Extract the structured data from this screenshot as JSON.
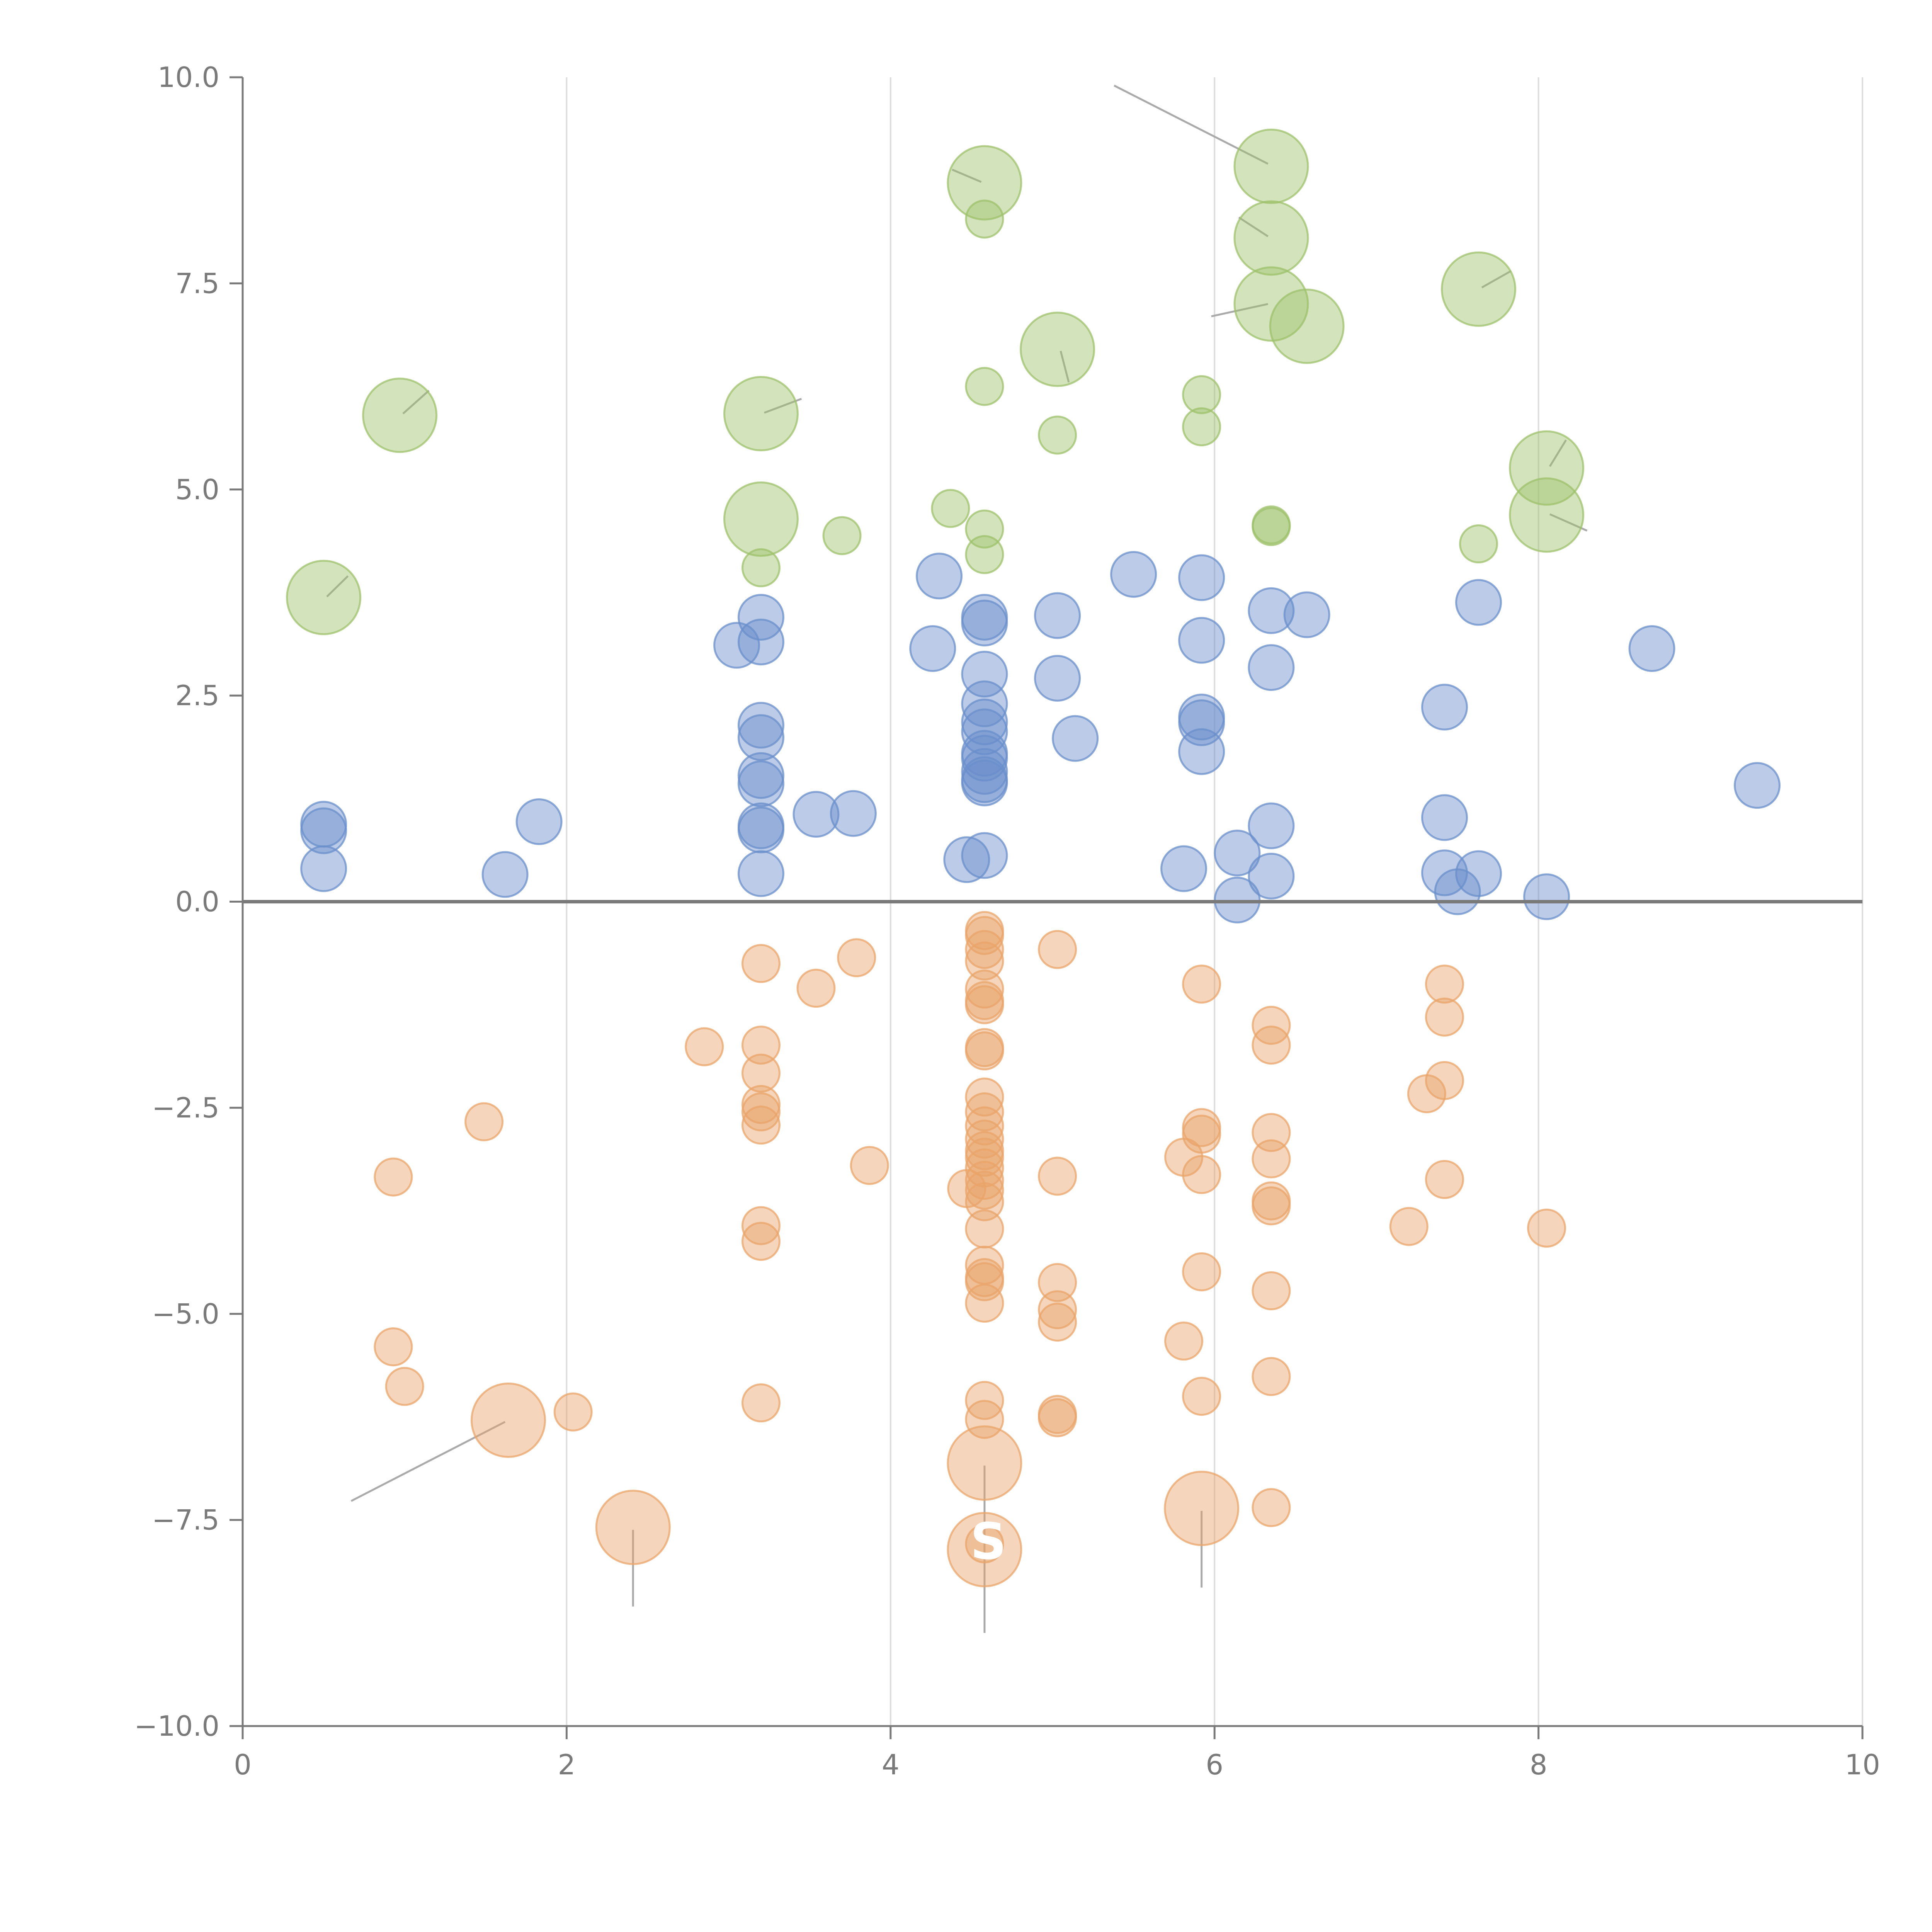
{
  "chart_data": {
    "type": "scatter",
    "title": "",
    "xlabel": "",
    "ylabel": "",
    "xlim": [
      0,
      10
    ],
    "ylim": [
      -10,
      10
    ],
    "x_ticks": [
      0,
      2,
      4,
      6,
      8,
      10
    ],
    "x_tick_labels": [
      "0",
      "2",
      "4",
      "6",
      "8",
      "10"
    ],
    "y_ticks": [
      -10,
      -7.5,
      -5,
      -2.5,
      0,
      2.5,
      5,
      7.5,
      10
    ],
    "y_tick_labels": [
      "−10.0",
      "−7.5",
      "−5.0",
      "−2.5",
      "0.0",
      "2.5",
      "5.0",
      "7.5",
      "10.0"
    ],
    "grid": "vertical lines at x ticks",
    "baseline_y": 0,
    "colors": {
      "top": "#9dc16b",
      "middle": "#6a8fcb",
      "bottom": "#e9a46a",
      "axis": "#7a7a7a",
      "grid": "#dddddd",
      "leader": "#aaaaaa"
    },
    "series": [
      {
        "name": "top",
        "points": [
          {
            "x": 4.58,
            "y": 8.72,
            "s": "big"
          },
          {
            "x": 4.58,
            "y": 8.28,
            "s": "small"
          },
          {
            "x": 6.35,
            "y": 8.92,
            "s": "big"
          },
          {
            "x": 6.35,
            "y": 8.05,
            "s": "big"
          },
          {
            "x": 6.35,
            "y": 7.25,
            "s": "big"
          },
          {
            "x": 6.57,
            "y": 6.98,
            "s": "big"
          },
          {
            "x": 7.63,
            "y": 7.43,
            "s": "big"
          },
          {
            "x": 5.03,
            "y": 6.7,
            "s": "big"
          },
          {
            "x": 0.97,
            "y": 5.9,
            "s": "big"
          },
          {
            "x": 3.2,
            "y": 5.92,
            "s": "big"
          },
          {
            "x": 4.58,
            "y": 6.25,
            "s": "small"
          },
          {
            "x": 5.92,
            "y": 6.15,
            "s": "small"
          },
          {
            "x": 5.92,
            "y": 5.76,
            "s": "small"
          },
          {
            "x": 5.03,
            "y": 5.66,
            "s": "small"
          },
          {
            "x": 8.05,
            "y": 5.26,
            "s": "big"
          },
          {
            "x": 8.05,
            "y": 4.69,
            "s": "big"
          },
          {
            "x": 3.2,
            "y": 4.64,
            "s": "big"
          },
          {
            "x": 4.37,
            "y": 4.77,
            "s": "small"
          },
          {
            "x": 4.58,
            "y": 4.52,
            "s": "small"
          },
          {
            "x": 6.35,
            "y": 4.57,
            "s": "small"
          },
          {
            "x": 6.35,
            "y": 4.55,
            "s": "small"
          },
          {
            "x": 3.7,
            "y": 4.44,
            "s": "small"
          },
          {
            "x": 7.63,
            "y": 4.34,
            "s": "small"
          },
          {
            "x": 4.58,
            "y": 4.21,
            "s": "small"
          },
          {
            "x": 3.2,
            "y": 4.05,
            "s": "small"
          },
          {
            "x": 0.5,
            "y": 3.69,
            "s": "big"
          }
        ]
      },
      {
        "name": "middle",
        "points": [
          {
            "x": 4.3,
            "y": 3.95
          },
          {
            "x": 5.5,
            "y": 3.97
          },
          {
            "x": 5.92,
            "y": 3.93
          },
          {
            "x": 7.63,
            "y": 3.63
          },
          {
            "x": 6.35,
            "y": 3.53
          },
          {
            "x": 6.57,
            "y": 3.48
          },
          {
            "x": 3.2,
            "y": 3.45
          },
          {
            "x": 4.58,
            "y": 3.45
          },
          {
            "x": 4.58,
            "y": 3.38
          },
          {
            "x": 5.03,
            "y": 3.47
          },
          {
            "x": 5.92,
            "y": 3.17
          },
          {
            "x": 3.2,
            "y": 3.15
          },
          {
            "x": 3.05,
            "y": 3.11
          },
          {
            "x": 4.26,
            "y": 3.07
          },
          {
            "x": 8.7,
            "y": 3.07
          },
          {
            "x": 6.35,
            "y": 2.84
          },
          {
            "x": 4.58,
            "y": 2.76
          },
          {
            "x": 5.03,
            "y": 2.71
          },
          {
            "x": 4.58,
            "y": 2.4
          },
          {
            "x": 7.42,
            "y": 2.36
          },
          {
            "x": 5.92,
            "y": 2.24
          },
          {
            "x": 5.92,
            "y": 2.17
          },
          {
            "x": 4.58,
            "y": 2.18
          },
          {
            "x": 3.2,
            "y": 2.14
          },
          {
            "x": 4.58,
            "y": 2.06
          },
          {
            "x": 3.2,
            "y": 1.99
          },
          {
            "x": 5.14,
            "y": 1.98
          },
          {
            "x": 5.92,
            "y": 1.82
          },
          {
            "x": 4.58,
            "y": 1.8
          },
          {
            "x": 4.58,
            "y": 1.74
          },
          {
            "x": 4.58,
            "y": 1.58
          },
          {
            "x": 3.2,
            "y": 1.53
          },
          {
            "x": 4.58,
            "y": 1.48
          },
          {
            "x": 4.58,
            "y": 1.44
          },
          {
            "x": 3.2,
            "y": 1.43
          },
          {
            "x": 9.35,
            "y": 1.41
          },
          {
            "x": 3.54,
            "y": 1.06
          },
          {
            "x": 3.77,
            "y": 1.07
          },
          {
            "x": 7.42,
            "y": 1.02
          },
          {
            "x": 0.5,
            "y": 0.94
          },
          {
            "x": 0.5,
            "y": 0.86
          },
          {
            "x": 1.83,
            "y": 0.97
          },
          {
            "x": 3.2,
            "y": 0.92
          },
          {
            "x": 3.2,
            "y": 0.87
          },
          {
            "x": 6.35,
            "y": 0.92
          },
          {
            "x": 6.14,
            "y": 0.59
          },
          {
            "x": 4.58,
            "y": 0.56
          },
          {
            "x": 4.47,
            "y": 0.51
          },
          {
            "x": 5.81,
            "y": 0.4
          },
          {
            "x": 0.5,
            "y": 0.4
          },
          {
            "x": 7.42,
            "y": 0.35
          },
          {
            "x": 7.63,
            "y": 0.34
          },
          {
            "x": 1.62,
            "y": 0.33
          },
          {
            "x": 3.2,
            "y": 0.34
          },
          {
            "x": 6.35,
            "y": 0.31
          },
          {
            "x": 7.5,
            "y": 0.12
          },
          {
            "x": 8.05,
            "y": 0.06
          },
          {
            "x": 6.14,
            "y": 0.02
          }
        ]
      },
      {
        "name": "bottom",
        "points": [
          {
            "x": 4.58,
            "y": -0.35,
            "s": "small"
          },
          {
            "x": 4.58,
            "y": -0.41,
            "s": "small"
          },
          {
            "x": 4.58,
            "y": -0.58,
            "s": "small"
          },
          {
            "x": 5.03,
            "y": -0.58,
            "s": "small"
          },
          {
            "x": 3.79,
            "y": -0.68,
            "s": "small"
          },
          {
            "x": 4.58,
            "y": -0.72,
            "s": "small"
          },
          {
            "x": 3.2,
            "y": -0.75,
            "s": "small"
          },
          {
            "x": 5.92,
            "y": -1.0,
            "s": "small"
          },
          {
            "x": 7.42,
            "y": -1.0,
            "s": "small"
          },
          {
            "x": 4.58,
            "y": -1.06,
            "s": "small"
          },
          {
            "x": 3.54,
            "y": -1.05,
            "s": "small"
          },
          {
            "x": 4.58,
            "y": -1.2,
            "s": "small"
          },
          {
            "x": 4.58,
            "y": -1.25,
            "s": "small"
          },
          {
            "x": 7.42,
            "y": -1.4,
            "s": "small"
          },
          {
            "x": 6.35,
            "y": -1.5,
            "s": "small"
          },
          {
            "x": 6.35,
            "y": -1.74,
            "s": "small"
          },
          {
            "x": 2.85,
            "y": -1.76,
            "s": "small"
          },
          {
            "x": 3.2,
            "y": -1.74,
            "s": "small"
          },
          {
            "x": 4.58,
            "y": -1.77,
            "s": "small"
          },
          {
            "x": 4.58,
            "y": -1.81,
            "s": "small"
          },
          {
            "x": 3.2,
            "y": -2.08,
            "s": "small"
          },
          {
            "x": 7.42,
            "y": -2.17,
            "s": "small"
          },
          {
            "x": 7.31,
            "y": -2.33,
            "s": "small"
          },
          {
            "x": 4.58,
            "y": -2.37,
            "s": "small"
          },
          {
            "x": 3.2,
            "y": -2.46,
            "s": "small"
          },
          {
            "x": 3.2,
            "y": -2.55,
            "s": "small"
          },
          {
            "x": 4.58,
            "y": -2.55,
            "s": "small"
          },
          {
            "x": 1.49,
            "y": -2.67,
            "s": "small"
          },
          {
            "x": 3.2,
            "y": -2.71,
            "s": "small"
          },
          {
            "x": 4.58,
            "y": -2.72,
            "s": "small"
          },
          {
            "x": 5.92,
            "y": -2.74,
            "s": "small"
          },
          {
            "x": 5.92,
            "y": -2.82,
            "s": "small"
          },
          {
            "x": 6.35,
            "y": -2.8,
            "s": "small"
          },
          {
            "x": 4.58,
            "y": -2.88,
            "s": "small"
          },
          {
            "x": 4.58,
            "y": -3.02,
            "s": "small"
          },
          {
            "x": 4.58,
            "y": -3.1,
            "s": "small"
          },
          {
            "x": 5.81,
            "y": -3.1,
            "s": "small"
          },
          {
            "x": 6.35,
            "y": -3.12,
            "s": "small"
          },
          {
            "x": 3.87,
            "y": -3.2,
            "s": "small"
          },
          {
            "x": 4.58,
            "y": -3.23,
            "s": "small"
          },
          {
            "x": 0.93,
            "y": -3.34,
            "s": "small"
          },
          {
            "x": 5.03,
            "y": -3.33,
            "s": "small"
          },
          {
            "x": 5.92,
            "y": -3.31,
            "s": "small"
          },
          {
            "x": 7.42,
            "y": -3.37,
            "s": "small"
          },
          {
            "x": 4.58,
            "y": -3.38,
            "s": "small"
          },
          {
            "x": 4.47,
            "y": -3.48,
            "s": "small"
          },
          {
            "x": 4.58,
            "y": -3.5,
            "s": "small"
          },
          {
            "x": 6.35,
            "y": -3.63,
            "s": "small"
          },
          {
            "x": 4.58,
            "y": -3.64,
            "s": "small"
          },
          {
            "x": 6.35,
            "y": -3.69,
            "s": "small"
          },
          {
            "x": 3.2,
            "y": -3.93,
            "s": "small"
          },
          {
            "x": 7.2,
            "y": -3.94,
            "s": "small"
          },
          {
            "x": 4.58,
            "y": -3.97,
            "s": "small"
          },
          {
            "x": 8.05,
            "y": -3.96,
            "s": "small"
          },
          {
            "x": 3.2,
            "y": -4.12,
            "s": "small"
          },
          {
            "x": 4.58,
            "y": -4.41,
            "s": "small"
          },
          {
            "x": 5.92,
            "y": -4.49,
            "s": "small"
          },
          {
            "x": 4.58,
            "y": -4.56,
            "s": "small"
          },
          {
            "x": 5.03,
            "y": -4.62,
            "s": "small"
          },
          {
            "x": 4.58,
            "y": -4.61,
            "s": "small"
          },
          {
            "x": 6.35,
            "y": -4.72,
            "s": "small"
          },
          {
            "x": 4.58,
            "y": -4.87,
            "s": "small"
          },
          {
            "x": 5.03,
            "y": -4.95,
            "s": "small"
          },
          {
            "x": 5.03,
            "y": -5.1,
            "s": "small"
          },
          {
            "x": 5.81,
            "y": -5.33,
            "s": "small"
          },
          {
            "x": 0.93,
            "y": -5.4,
            "s": "small"
          },
          {
            "x": 6.35,
            "y": -5.76,
            "s": "small"
          },
          {
            "x": 1.0,
            "y": -5.88,
            "s": "small"
          },
          {
            "x": 5.92,
            "y": -6.0,
            "s": "small"
          },
          {
            "x": 4.58,
            "y": -6.05,
            "s": "small"
          },
          {
            "x": 3.2,
            "y": -6.08,
            "s": "small"
          },
          {
            "x": 2.04,
            "y": -6.19,
            "s": "small"
          },
          {
            "x": 5.03,
            "y": -6.22,
            "s": "small"
          },
          {
            "x": 5.03,
            "y": -6.26,
            "s": "small"
          },
          {
            "x": 4.58,
            "y": -6.28,
            "s": "small"
          },
          {
            "x": 1.64,
            "y": -6.29,
            "s": "big"
          },
          {
            "x": 4.58,
            "y": -6.81,
            "s": "big"
          },
          {
            "x": 6.35,
            "y": -7.35,
            "s": "small"
          },
          {
            "x": 5.92,
            "y": -7.36,
            "s": "big"
          },
          {
            "x": 2.41,
            "y": -7.59,
            "s": "big"
          },
          {
            "x": 4.58,
            "y": -7.79,
            "s": "small"
          },
          {
            "x": 4.58,
            "y": -7.86,
            "s": "big"
          }
        ]
      }
    ],
    "leader_lines": [
      {
        "x1": 5.38,
        "y1": 9.9,
        "x2": 6.33,
        "y2": 8.95
      },
      {
        "x1": 4.38,
        "y1": 8.88,
        "x2": 4.56,
        "y2": 8.73
      },
      {
        "x1": 6.15,
        "y1": 8.3,
        "x2": 6.33,
        "y2": 8.07
      },
      {
        "x1": 5.98,
        "y1": 7.1,
        "x2": 6.33,
        "y2": 7.25
      },
      {
        "x1": 7.83,
        "y1": 7.65,
        "x2": 7.65,
        "y2": 7.45
      },
      {
        "x1": 5.1,
        "y1": 6.3,
        "x2": 5.05,
        "y2": 6.68
      },
      {
        "x1": 1.15,
        "y1": 6.2,
        "x2": 0.99,
        "y2": 5.92
      },
      {
        "x1": 3.45,
        "y1": 6.1,
        "x2": 3.22,
        "y2": 5.93
      },
      {
        "x1": 8.17,
        "y1": 5.6,
        "x2": 8.07,
        "y2": 5.28
      },
      {
        "x1": 8.3,
        "y1": 4.5,
        "x2": 8.07,
        "y2": 4.7
      },
      {
        "x1": 0.65,
        "y1": 3.95,
        "x2": 0.52,
        "y2": 3.7
      },
      {
        "x1": 0.67,
        "y1": -7.27,
        "x2": 1.62,
        "y2": -6.31
      },
      {
        "x1": 2.41,
        "y1": -8.55,
        "x2": 2.41,
        "y2": -7.62
      },
      {
        "x1": 4.58,
        "y1": -8.87,
        "x2": 4.58,
        "y2": -6.84
      },
      {
        "x1": 5.92,
        "y1": -8.32,
        "x2": 5.92,
        "y2": -7.39
      }
    ],
    "annotations": [
      {
        "text": "S",
        "x": 4.58,
        "y": -7.76
      }
    ]
  }
}
